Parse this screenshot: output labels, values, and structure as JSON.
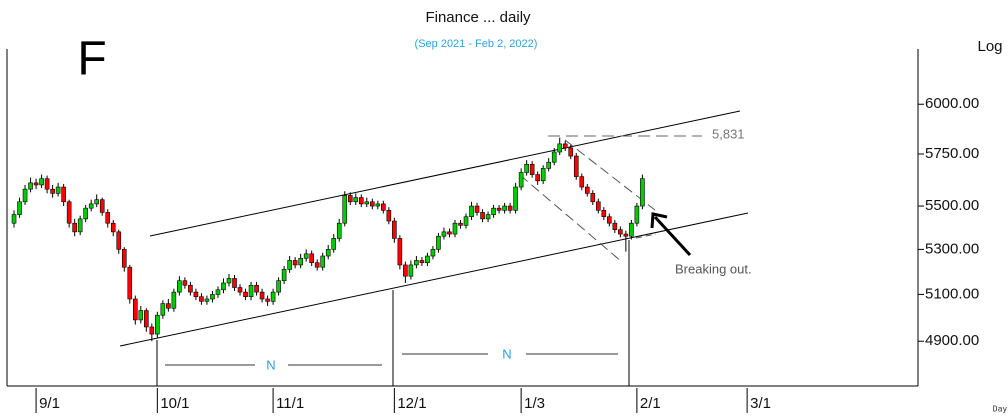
{
  "chart_data": {
    "type": "candlestick",
    "title": "Finance ... daily",
    "subtitle": "(Sep 2021 - Feb 2, 2022)",
    "symbol": "F",
    "scale_label": "Log",
    "period_label": "Day",
    "annotations": [
      "5,831",
      "Breaking out.",
      "N",
      "N"
    ],
    "log_scale": true,
    "up_color": "#00cc00",
    "down_color": "#ff0000",
    "xlim": [
      -2,
      164
    ],
    "xticks": [
      {
        "value": 4,
        "label": "9/1"
      },
      {
        "value": 26,
        "label": "10/1"
      },
      {
        "value": 47,
        "label": "11/1"
      },
      {
        "value": 69,
        "label": "12/1"
      },
      {
        "value": 92,
        "label": "1/3"
      },
      {
        "value": 113,
        "label": "2/1"
      },
      {
        "value": 133,
        "label": "3/1"
      }
    ],
    "ylim": [
      4720,
      6290
    ],
    "yticks": [
      {
        "value": 4900,
        "label": "4900.00"
      },
      {
        "value": 5100,
        "label": "5100.00"
      },
      {
        "value": 5300,
        "label": "5300.00"
      },
      {
        "value": 5500,
        "label": "5500.00"
      },
      {
        "value": 5750,
        "label": "5750.00"
      },
      {
        "value": 6000,
        "label": "6000.00"
      }
    ],
    "x": [
      0,
      1,
      2,
      3,
      4,
      5,
      6,
      7,
      8,
      9,
      10,
      11,
      12,
      13,
      14,
      15,
      16,
      17,
      18,
      19,
      20,
      21,
      22,
      23,
      24,
      25,
      26,
      27,
      28,
      29,
      30,
      31,
      32,
      33,
      34,
      35,
      36,
      37,
      38,
      39,
      40,
      41,
      42,
      43,
      44,
      45,
      46,
      47,
      48,
      49,
      50,
      51,
      52,
      53,
      54,
      55,
      56,
      57,
      58,
      59,
      60,
      61,
      62,
      63,
      64,
      65,
      66,
      67,
      68,
      69,
      70,
      71,
      72,
      73,
      74,
      75,
      76,
      77,
      78,
      79,
      80,
      81,
      82,
      83,
      84,
      85,
      86,
      87,
      88,
      89,
      90,
      91,
      92,
      93,
      94,
      95,
      96,
      97,
      98,
      99,
      100,
      101,
      102,
      103,
      104,
      105,
      106,
      107,
      108,
      109,
      110,
      111,
      112,
      113,
      114
    ],
    "open": [
      5420,
      5460,
      5520,
      5580,
      5610,
      5600,
      5630,
      5580,
      5560,
      5590,
      5520,
      5420,
      5380,
      5440,
      5490,
      5510,
      5530,
      5470,
      5420,
      5380,
      5300,
      5220,
      5080,
      4990,
      5030,
      4960,
      4930,
      5010,
      5060,
      5040,
      5110,
      5160,
      5140,
      5110,
      5090,
      5070,
      5080,
      5100,
      5120,
      5150,
      5170,
      5130,
      5110,
      5090,
      5140,
      5110,
      5080,
      5070,
      5110,
      5160,
      5210,
      5250,
      5230,
      5260,
      5280,
      5240,
      5220,
      5270,
      5300,
      5350,
      5420,
      5550,
      5520,
      5540,
      5510,
      5520,
      5500,
      5510,
      5480,
      5430,
      5350,
      5230,
      5180,
      5230,
      5250,
      5240,
      5270,
      5300,
      5360,
      5380,
      5370,
      5420,
      5410,
      5450,
      5500,
      5470,
      5440,
      5460,
      5490,
      5480,
      5500,
      5480,
      5590,
      5660,
      5700,
      5650,
      5620,
      5680,
      5710,
      5760,
      5800,
      5780,
      5740,
      5640,
      5590,
      5560,
      5520,
      5480,
      5450,
      5420,
      5390,
      5370,
      5360,
      5420,
      5500
    ],
    "high": [
      5480,
      5540,
      5600,
      5635,
      5630,
      5650,
      5645,
      5600,
      5610,
      5605,
      5530,
      5440,
      5455,
      5505,
      5530,
      5555,
      5540,
      5485,
      5435,
      5390,
      5310,
      5230,
      5095,
      5050,
      5040,
      4975,
      5025,
      5075,
      5080,
      5125,
      5180,
      5175,
      5155,
      5125,
      5105,
      5095,
      5115,
      5135,
      5170,
      5190,
      5185,
      5145,
      5125,
      5155,
      5155,
      5125,
      5095,
      5125,
      5175,
      5225,
      5270,
      5265,
      5280,
      5300,
      5295,
      5255,
      5285,
      5320,
      5370,
      5440,
      5570,
      5565,
      5560,
      5555,
      5540,
      5535,
      5525,
      5525,
      5495,
      5445,
      5365,
      5245,
      5250,
      5270,
      5265,
      5285,
      5315,
      5375,
      5400,
      5395,
      5435,
      5435,
      5465,
      5520,
      5515,
      5485,
      5475,
      5505,
      5505,
      5515,
      5515,
      5610,
      5680,
      5720,
      5715,
      5665,
      5695,
      5730,
      5780,
      5831,
      5815,
      5795,
      5755,
      5655,
      5605,
      5575,
      5535,
      5495,
      5465,
      5435,
      5405,
      5385,
      5435,
      5515,
      5650
    ],
    "low": [
      5400,
      5445,
      5505,
      5565,
      5580,
      5585,
      5560,
      5540,
      5545,
      5500,
      5400,
      5360,
      5365,
      5425,
      5475,
      5495,
      5455,
      5400,
      5360,
      5280,
      5200,
      5060,
      4970,
      4975,
      4940,
      4900,
      4915,
      4995,
      5025,
      5025,
      5095,
      5125,
      5095,
      5075,
      5055,
      5055,
      5065,
      5085,
      5105,
      5135,
      5115,
      5095,
      5075,
      5075,
      5095,
      5065,
      5050,
      5055,
      5095,
      5145,
      5195,
      5215,
      5215,
      5245,
      5225,
      5205,
      5205,
      5255,
      5285,
      5335,
      5405,
      5505,
      5505,
      5495,
      5495,
      5485,
      5485,
      5465,
      5415,
      5330,
      5210,
      5150,
      5165,
      5215,
      5225,
      5225,
      5255,
      5285,
      5345,
      5355,
      5355,
      5395,
      5395,
      5435,
      5455,
      5425,
      5425,
      5445,
      5465,
      5465,
      5465,
      5465,
      5575,
      5645,
      5635,
      5600,
      5605,
      5665,
      5695,
      5745,
      5765,
      5725,
      5625,
      5575,
      5545,
      5505,
      5465,
      5435,
      5405,
      5375,
      5355,
      5290,
      5345,
      5405,
      5485
    ],
    "close": [
      5460,
      5520,
      5580,
      5610,
      5600,
      5630,
      5580,
      5560,
      5590,
      5520,
      5420,
      5380,
      5440,
      5490,
      5510,
      5530,
      5470,
      5420,
      5380,
      5300,
      5220,
      5080,
      4990,
      5030,
      4960,
      4930,
      5010,
      5060,
      5040,
      5110,
      5160,
      5140,
      5110,
      5090,
      5070,
      5080,
      5100,
      5120,
      5150,
      5170,
      5130,
      5110,
      5090,
      5140,
      5110,
      5080,
      5070,
      5110,
      5160,
      5210,
      5250,
      5230,
      5260,
      5280,
      5240,
      5220,
      5270,
      5300,
      5350,
      5420,
      5550,
      5520,
      5540,
      5510,
      5520,
      5500,
      5510,
      5480,
      5430,
      5350,
      5230,
      5180,
      5230,
      5250,
      5240,
      5270,
      5300,
      5360,
      5380,
      5370,
      5420,
      5410,
      5450,
      5500,
      5470,
      5440,
      5460,
      5490,
      5480,
      5500,
      5480,
      5590,
      5660,
      5700,
      5650,
      5620,
      5680,
      5710,
      5760,
      5800,
      5780,
      5740,
      5640,
      5590,
      5560,
      5520,
      5480,
      5450,
      5420,
      5390,
      5370,
      5360,
      5420,
      5500,
      5630
    ]
  }
}
